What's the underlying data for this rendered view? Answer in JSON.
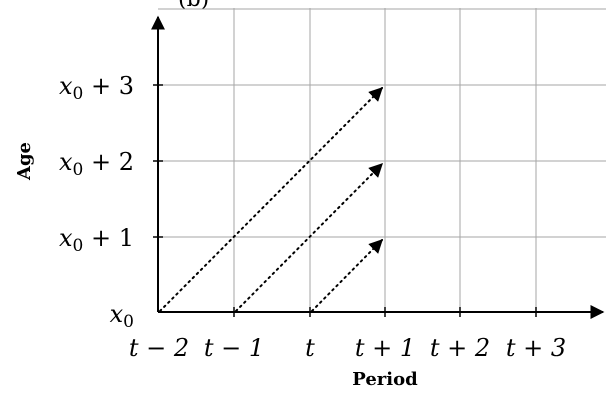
{
  "diagram": {
    "top_label": "(b)",
    "x_axis_title": "Period",
    "y_axis_title": "Age",
    "x_ticks": [
      "t − 2",
      "t − 1",
      "t",
      "t + 1",
      "t + 2",
      "t + 3"
    ],
    "y_ticks": [
      {
        "base": "x",
        "sub": "0",
        "suffix": ""
      },
      {
        "base": "x",
        "sub": "0",
        "suffix": " + 1"
      },
      {
        "base": "x",
        "sub": "0",
        "suffix": " + 2"
      },
      {
        "base": "x",
        "sub": "0",
        "suffix": " + 3"
      }
    ],
    "cohort_arrows": [
      {
        "from": {
          "period": "t − 2",
          "age": 0
        },
        "to": {
          "period": "t + 1",
          "age": 3
        }
      },
      {
        "from": {
          "period": "t − 1",
          "age": 0
        },
        "to": {
          "period": "t + 1",
          "age": 2
        }
      },
      {
        "from": {
          "period": "t",
          "age": 0
        },
        "to": {
          "period": "t + 1",
          "age": 1
        }
      }
    ],
    "grid": true,
    "colors": {
      "grid": "#a6a6a6",
      "axis": "#000000",
      "arrow": "#000000"
    }
  }
}
